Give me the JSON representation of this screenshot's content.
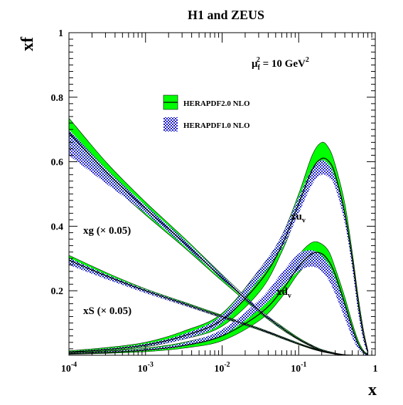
{
  "chart_data": {
    "type": "line",
    "title": "H1 and ZEUS",
    "xlabel": "x",
    "ylabel": "xf",
    "x_scale": "log",
    "xlim": [
      0.0001,
      1
    ],
    "ylim": [
      0,
      1
    ],
    "grid": false,
    "legend_position": "top-center",
    "scale_label": {
      "prefix": "μ",
      "sub": "f",
      "sup": "2",
      "suffix": " = 10 GeV",
      "unit_sup": "2"
    },
    "x_ticks": [
      {
        "base": "10",
        "exp": "-4",
        "value": 0.0001
      },
      {
        "base": "10",
        "exp": "-3",
        "value": 0.001
      },
      {
        "base": "10",
        "exp": "-2",
        "value": 0.01
      },
      {
        "base": "10",
        "exp": "-1",
        "value": 0.1
      },
      {
        "base": "1",
        "exp": "",
        "value": 1
      }
    ],
    "y_ticks": [
      {
        "label": "0.2",
        "value": 0.2
      },
      {
        "label": "0.4",
        "value": 0.4
      },
      {
        "label": "0.6",
        "value": 0.6
      },
      {
        "label": "0.8",
        "value": 0.8
      },
      {
        "label": "1",
        "value": 1.0
      }
    ],
    "legend": [
      {
        "label": "HERAPDF2.0 NLO",
        "color": "#00ff00",
        "style": "solid-band-with-line"
      },
      {
        "label": "HERAPDF1.0 NLO",
        "color": "#0000cc",
        "style": "hatched-band"
      }
    ],
    "series": [
      {
        "name": "xu_v",
        "label": {
          "main": "xu",
          "sub": "v"
        },
        "x": [
          0.0001,
          0.000316,
          0.001,
          0.00316,
          0.01,
          0.0316,
          0.06,
          0.1,
          0.15,
          0.2,
          0.25,
          0.3,
          0.4,
          0.5,
          0.6,
          0.7,
          0.8
        ],
        "central": [
          0.01,
          0.018,
          0.032,
          0.06,
          0.11,
          0.23,
          0.34,
          0.47,
          0.575,
          0.61,
          0.6,
          0.56,
          0.44,
          0.3,
          0.16,
          0.065,
          0.01
        ],
        "v2_lower": [
          0.008,
          0.014,
          0.026,
          0.05,
          0.09,
          0.2,
          0.32,
          0.45,
          0.555,
          0.595,
          0.58,
          0.54,
          0.42,
          0.28,
          0.14,
          0.05,
          0.003
        ],
        "v2_upper": [
          0.014,
          0.024,
          0.04,
          0.075,
          0.13,
          0.27,
          0.37,
          0.5,
          0.62,
          0.66,
          0.64,
          0.59,
          0.47,
          0.32,
          0.18,
          0.08,
          0.015
        ],
        "v1_lower": [
          0.009,
          0.016,
          0.028,
          0.05,
          0.1,
          0.24,
          0.33,
          0.44,
          0.53,
          0.56,
          0.55,
          0.52,
          0.41,
          0.27,
          0.13,
          0.045,
          0.002
        ],
        "v1_upper": [
          0.012,
          0.021,
          0.036,
          0.066,
          0.125,
          0.27,
          0.37,
          0.49,
          0.58,
          0.605,
          0.59,
          0.55,
          0.44,
          0.3,
          0.165,
          0.075,
          0.012
        ]
      },
      {
        "name": "xd_v",
        "label": {
          "main": "xd",
          "sub": "v"
        },
        "x": [
          0.0001,
          0.000316,
          0.001,
          0.00316,
          0.01,
          0.0316,
          0.06,
          0.1,
          0.15,
          0.2,
          0.25,
          0.3,
          0.4,
          0.5,
          0.6,
          0.7,
          0.8
        ],
        "central": [
          0.005,
          0.009,
          0.016,
          0.03,
          0.06,
          0.13,
          0.2,
          0.275,
          0.315,
          0.315,
          0.29,
          0.25,
          0.16,
          0.085,
          0.035,
          0.01,
          0.002
        ],
        "v2_lower": [
          0.003,
          0.006,
          0.011,
          0.022,
          0.045,
          0.11,
          0.18,
          0.255,
          0.29,
          0.295,
          0.27,
          0.23,
          0.14,
          0.07,
          0.025,
          0.005,
          0.0
        ],
        "v2_upper": [
          0.008,
          0.013,
          0.022,
          0.04,
          0.075,
          0.15,
          0.225,
          0.31,
          0.35,
          0.345,
          0.32,
          0.27,
          0.18,
          0.1,
          0.045,
          0.015,
          0.004
        ],
        "v1_lower": [
          0.004,
          0.008,
          0.014,
          0.028,
          0.06,
          0.145,
          0.21,
          0.26,
          0.275,
          0.26,
          0.23,
          0.19,
          0.115,
          0.055,
          0.02,
          0.004,
          0.0
        ],
        "v1_upper": [
          0.007,
          0.012,
          0.02,
          0.038,
          0.08,
          0.175,
          0.255,
          0.315,
          0.325,
          0.31,
          0.28,
          0.24,
          0.155,
          0.085,
          0.035,
          0.01,
          0.003
        ]
      },
      {
        "name": "xg",
        "label": {
          "main": "xg (× 0.05)",
          "sub": ""
        },
        "x": [
          0.0001,
          0.000316,
          0.001,
          0.00316,
          0.01,
          0.0316,
          0.06,
          0.1,
          0.15,
          0.2,
          0.3,
          0.4,
          0.5
        ],
        "central": [
          0.69,
          0.565,
          0.455,
          0.35,
          0.24,
          0.135,
          0.085,
          0.05,
          0.028,
          0.015,
          0.005,
          0.001,
          0.0
        ],
        "v2_lower": [
          0.65,
          0.54,
          0.435,
          0.335,
          0.23,
          0.13,
          0.08,
          0.047,
          0.025,
          0.013,
          0.004,
          0.0,
          0.0
        ],
        "v2_upper": [
          0.735,
          0.595,
          0.475,
          0.365,
          0.25,
          0.14,
          0.09,
          0.054,
          0.031,
          0.018,
          0.007,
          0.002,
          0.0
        ],
        "v1_lower": [
          0.62,
          0.53,
          0.44,
          0.34,
          0.235,
          0.132,
          0.082,
          0.048,
          0.026,
          0.014,
          0.004,
          0.0,
          0.0
        ],
        "v1_upper": [
          0.7,
          0.575,
          0.465,
          0.36,
          0.248,
          0.14,
          0.088,
          0.052,
          0.03,
          0.017,
          0.006,
          0.001,
          0.0
        ]
      },
      {
        "name": "xS",
        "label": {
          "main": "xS (× 0.05)",
          "sub": ""
        },
        "x": [
          0.0001,
          0.000316,
          0.001,
          0.00316,
          0.01,
          0.0316,
          0.06,
          0.1,
          0.15,
          0.2,
          0.3,
          0.4,
          0.5
        ],
        "central": [
          0.295,
          0.245,
          0.2,
          0.16,
          0.12,
          0.08,
          0.055,
          0.035,
          0.021,
          0.012,
          0.004,
          0.001,
          0.0
        ],
        "v2_lower": [
          0.285,
          0.237,
          0.194,
          0.155,
          0.116,
          0.077,
          0.052,
          0.033,
          0.019,
          0.011,
          0.003,
          0.0,
          0.0
        ],
        "v2_upper": [
          0.31,
          0.255,
          0.206,
          0.165,
          0.124,
          0.083,
          0.058,
          0.038,
          0.023,
          0.014,
          0.005,
          0.001,
          0.0
        ],
        "v1_lower": [
          0.28,
          0.235,
          0.193,
          0.155,
          0.117,
          0.078,
          0.053,
          0.034,
          0.02,
          0.011,
          0.003,
          0.0,
          0.0
        ],
        "v1_upper": [
          0.302,
          0.25,
          0.204,
          0.163,
          0.122,
          0.082,
          0.057,
          0.037,
          0.022,
          0.013,
          0.005,
          0.001,
          0.0
        ]
      }
    ]
  }
}
